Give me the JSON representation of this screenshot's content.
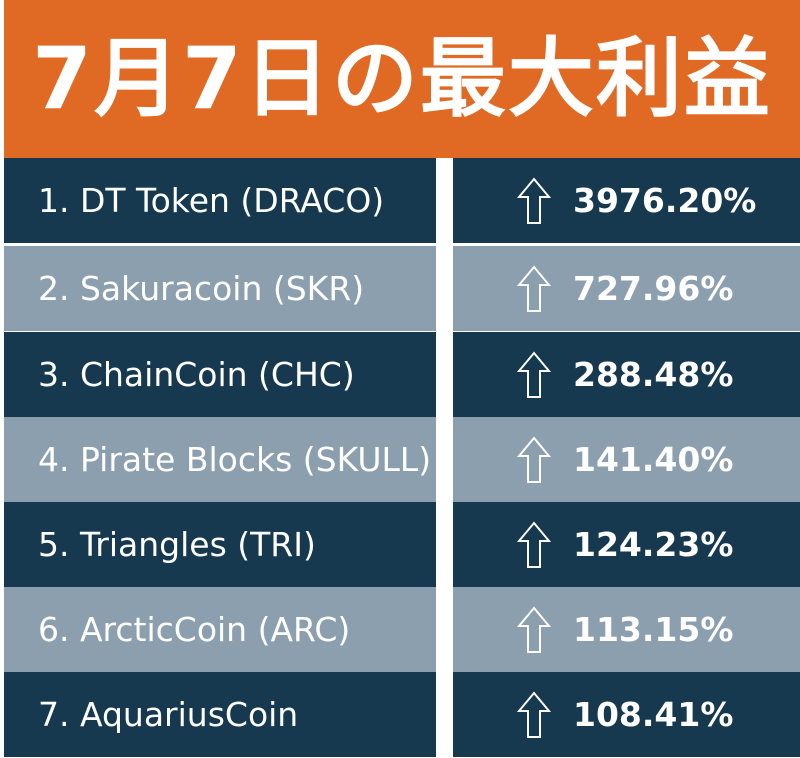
{
  "header": {
    "title": "7月7日の最大利益",
    "background_color": "#e06a24"
  },
  "colors": {
    "row_dark": "#16394f",
    "row_light": "#8c9fae",
    "text": "#ffffff"
  },
  "rows": [
    {
      "label": "1. DT Token (DRACO)",
      "gain": "3976.20%",
      "icon": "up-arrow-icon"
    },
    {
      "label": "2. Sakuracoin (SKR)",
      "gain": "727.96%",
      "icon": "up-arrow-icon"
    },
    {
      "label": "3. ChainCoin (CHC)",
      "gain": "288.48%",
      "icon": "up-arrow-icon"
    },
    {
      "label": "4. Pirate Blocks (SKULL)",
      "gain": "141.40%",
      "icon": "up-arrow-icon"
    },
    {
      "label": "5. Triangles (TRI)",
      "gain": "124.23%",
      "icon": "up-arrow-icon"
    },
    {
      "label": "6. ArcticCoin (ARC)",
      "gain": "113.15%",
      "icon": "up-arrow-icon"
    },
    {
      "label": "7. AquariusCoin",
      "gain": "108.41%",
      "icon": "up-arrow-icon"
    }
  ]
}
